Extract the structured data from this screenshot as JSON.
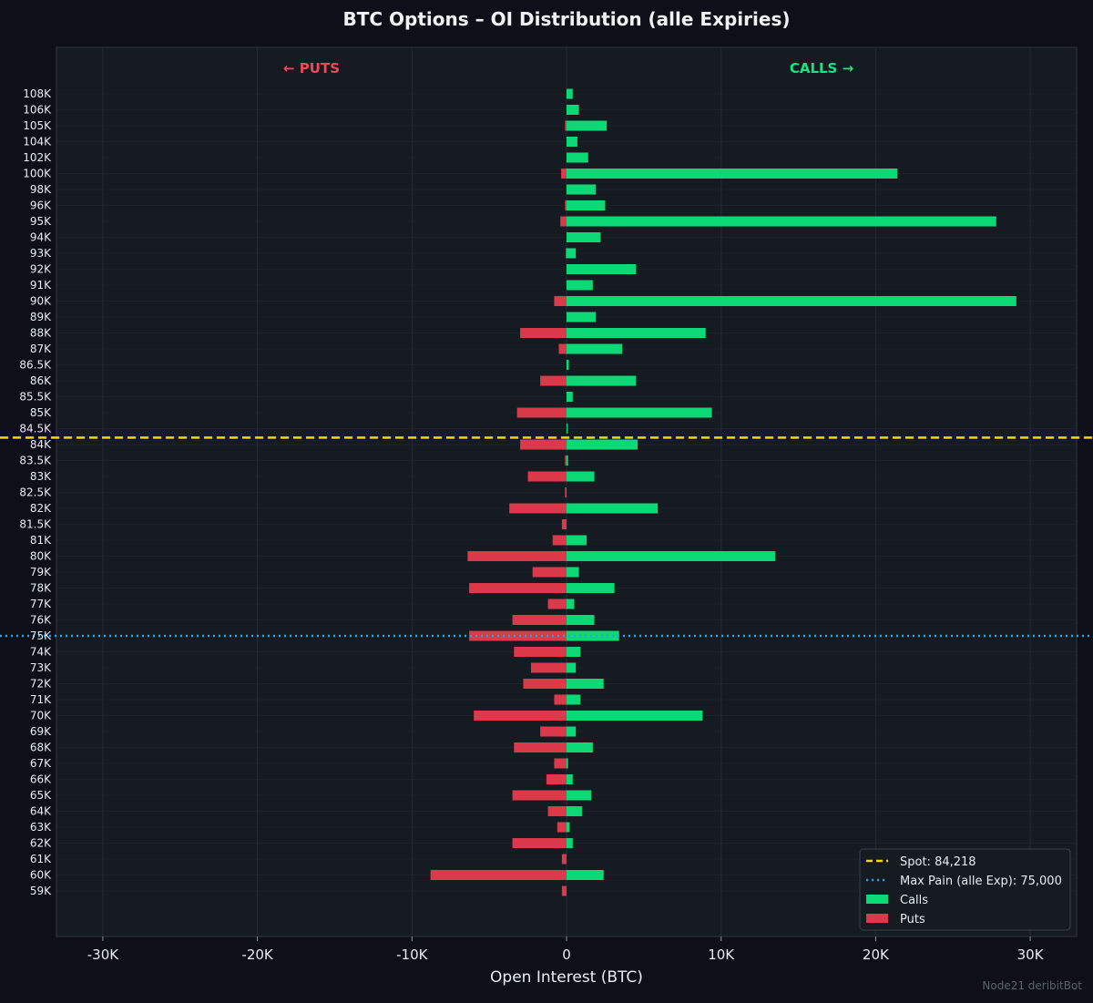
{
  "colors": {
    "background": "#0d1117",
    "plot_bg": "#161b22",
    "calls": "#0bd975",
    "puts": "#dc3a4b",
    "spot": "#f5d60a",
    "max_pain": "#1aa8f0",
    "grid": "#232a33",
    "axis": "#30363d"
  },
  "watermark": "Node21 deribitBot",
  "chart_data": {
    "type": "bar",
    "orientation": "horizontal",
    "title": "BTC Options – OI Distribution (alle Expiries)",
    "xlabel": "Open Interest (BTC)",
    "ylabel": "",
    "xlim": [
      -33000,
      33000
    ],
    "x_ticks": [
      -30000,
      -20000,
      -10000,
      0,
      10000,
      20000,
      30000
    ],
    "x_tick_labels": [
      "-30K",
      "-20K",
      "-10K",
      "0",
      "10K",
      "20K",
      "30K"
    ],
    "puts_label": "← PUTS",
    "calls_label": "CALLS →",
    "legend_position": "bottom-right",
    "grid": true,
    "categories": [
      "108K",
      "106K",
      "105K",
      "104K",
      "102K",
      "100K",
      "98K",
      "96K",
      "95K",
      "94K",
      "93K",
      "92K",
      "91K",
      "90K",
      "89K",
      "88K",
      "87K",
      "86.5K",
      "86K",
      "85.5K",
      "85K",
      "84.5K",
      "84K",
      "83.5K",
      "83K",
      "82.5K",
      "82K",
      "81.5K",
      "81K",
      "80K",
      "79K",
      "78K",
      "77K",
      "76K",
      "75K",
      "74K",
      "73K",
      "72K",
      "71K",
      "70K",
      "69K",
      "68K",
      "67K",
      "66K",
      "65K",
      "64K",
      "63K",
      "62K",
      "61K",
      "60K",
      "59K"
    ],
    "strikes": [
      108000,
      106000,
      105000,
      104000,
      102000,
      100000,
      98000,
      96000,
      95000,
      94000,
      93000,
      92000,
      91000,
      90000,
      89000,
      88000,
      87000,
      86500,
      86000,
      85500,
      85000,
      84500,
      84000,
      83500,
      83000,
      82500,
      82000,
      81500,
      81000,
      80000,
      79000,
      78000,
      77000,
      76000,
      75000,
      74000,
      73000,
      72000,
      71000,
      70000,
      69000,
      68000,
      67000,
      66000,
      65000,
      64000,
      63000,
      62000,
      61000,
      60000,
      59000
    ],
    "series": [
      {
        "name": "Calls",
        "values": [
          400,
          800,
          2600,
          700,
          1400,
          21400,
          1900,
          2500,
          27800,
          2200,
          600,
          4500,
          1700,
          29100,
          1900,
          9000,
          3600,
          150,
          4500,
          400,
          9400,
          80,
          4600,
          100,
          1800,
          0,
          5900,
          0,
          1300,
          13500,
          800,
          3100,
          500,
          1800,
          3400,
          900,
          600,
          2400,
          900,
          8800,
          600,
          1700,
          100,
          400,
          1600,
          1000,
          200,
          400,
          0,
          2400,
          0
        ]
      },
      {
        "name": "Puts",
        "values": [
          0,
          0,
          100,
          0,
          0,
          350,
          0,
          100,
          400,
          0,
          50,
          0,
          0,
          800,
          0,
          3000,
          500,
          0,
          1700,
          0,
          3200,
          0,
          3000,
          100,
          2500,
          100,
          3700,
          300,
          900,
          6400,
          2200,
          6300,
          1200,
          3500,
          6300,
          3400,
          2300,
          2800,
          800,
          6000,
          1700,
          3400,
          800,
          1300,
          3500,
          1200,
          600,
          3500,
          300,
          8800,
          300
        ]
      }
    ],
    "reference_lines": [
      {
        "name": "Spot: 84,218",
        "value": 84218,
        "style": "dashed"
      },
      {
        "name": "Max Pain (alle Exp): 75,000",
        "value": 75000,
        "style": "dotted"
      }
    ]
  }
}
